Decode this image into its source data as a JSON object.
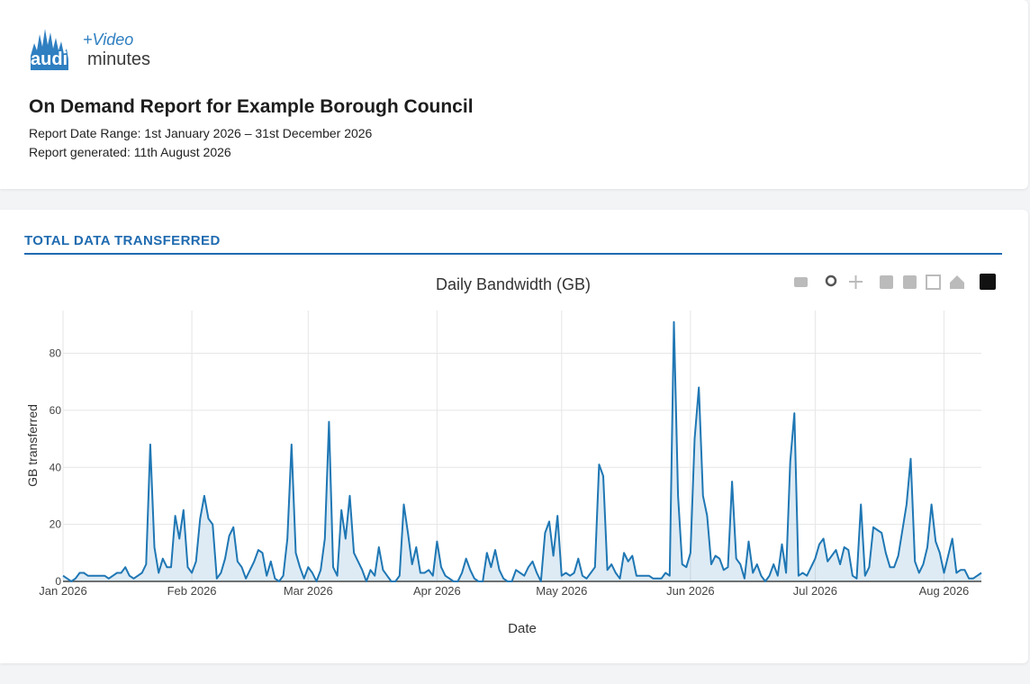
{
  "header": {
    "logo": {
      "audio": "audio",
      "minutes": "minutes",
      "video": "+Video"
    },
    "title": "On Demand Report for Example Borough Council",
    "date_range": "Report Date Range: 1st January 2026 – 31st December 2026",
    "generated": "Report generated: 11th August 2026"
  },
  "section": {
    "title": "TOTAL DATA TRANSFERRED"
  },
  "chart_data": {
    "type": "line",
    "title": "Daily Bandwidth (GB)",
    "x_label": "Date",
    "y_label": "GB transferred",
    "color": "#1f77b4",
    "fill": true,
    "grid": true,
    "xlim": [
      "2026-01-01",
      "2026-08-10"
    ],
    "ylim": [
      0,
      95
    ],
    "xticks": [
      {
        "value": "2026-01-01",
        "label": "Jan 2026"
      },
      {
        "value": "2026-02-01",
        "label": "Feb 2026"
      },
      {
        "value": "2026-03-01",
        "label": "Mar 2026"
      },
      {
        "value": "2026-04-01",
        "label": "Apr 2026"
      },
      {
        "value": "2026-05-01",
        "label": "May 2026"
      },
      {
        "value": "2026-06-01",
        "label": "Jun 2026"
      },
      {
        "value": "2026-07-01",
        "label": "Jul 2026"
      },
      {
        "value": "2026-08-01",
        "label": "Aug 2026"
      }
    ],
    "yticks": [
      0,
      20,
      40,
      60,
      80
    ],
    "x": [
      "2026-01-01",
      "2026-01-02",
      "2026-01-03",
      "2026-01-04",
      "2026-01-05",
      "2026-01-06",
      "2026-01-07",
      "2026-01-08",
      "2026-01-09",
      "2026-01-10",
      "2026-01-11",
      "2026-01-12",
      "2026-01-13",
      "2026-01-14",
      "2026-01-15",
      "2026-01-16",
      "2026-01-17",
      "2026-01-18",
      "2026-01-19",
      "2026-01-20",
      "2026-01-21",
      "2026-01-22",
      "2026-01-23",
      "2026-01-24",
      "2026-01-25",
      "2026-01-26",
      "2026-01-27",
      "2026-01-28",
      "2026-01-29",
      "2026-01-30",
      "2026-01-31",
      "2026-02-01",
      "2026-02-02",
      "2026-02-03",
      "2026-02-04",
      "2026-02-05",
      "2026-02-06",
      "2026-02-07",
      "2026-02-08",
      "2026-02-09",
      "2026-02-10",
      "2026-02-11",
      "2026-02-12",
      "2026-02-13",
      "2026-02-14",
      "2026-02-15",
      "2026-02-16",
      "2026-02-17",
      "2026-02-18",
      "2026-02-19",
      "2026-02-20",
      "2026-02-21",
      "2026-02-22",
      "2026-02-23",
      "2026-02-24",
      "2026-02-25",
      "2026-02-26",
      "2026-02-27",
      "2026-02-28",
      "2026-03-01",
      "2026-03-02",
      "2026-03-03",
      "2026-03-04",
      "2026-03-05",
      "2026-03-06",
      "2026-03-07",
      "2026-03-08",
      "2026-03-09",
      "2026-03-10",
      "2026-03-11",
      "2026-03-12",
      "2026-03-13",
      "2026-03-14",
      "2026-03-15",
      "2026-03-16",
      "2026-03-17",
      "2026-03-18",
      "2026-03-19",
      "2026-03-20",
      "2026-03-21",
      "2026-03-22",
      "2026-03-23",
      "2026-03-24",
      "2026-03-25",
      "2026-03-26",
      "2026-03-27",
      "2026-03-28",
      "2026-03-29",
      "2026-03-30",
      "2026-03-31",
      "2026-04-01",
      "2026-04-02",
      "2026-04-03",
      "2026-04-04",
      "2026-04-05",
      "2026-04-06",
      "2026-04-07",
      "2026-04-08",
      "2026-04-09",
      "2026-04-10",
      "2026-04-11",
      "2026-04-12",
      "2026-04-13",
      "2026-04-14",
      "2026-04-15",
      "2026-04-16",
      "2026-04-17",
      "2026-04-18",
      "2026-04-19",
      "2026-04-20",
      "2026-04-21",
      "2026-04-22",
      "2026-04-23",
      "2026-04-24",
      "2026-04-25",
      "2026-04-26",
      "2026-04-27",
      "2026-04-28",
      "2026-04-29",
      "2026-04-30",
      "2026-05-01",
      "2026-05-02",
      "2026-05-03",
      "2026-05-04",
      "2026-05-05",
      "2026-05-06",
      "2026-05-07",
      "2026-05-08",
      "2026-05-09",
      "2026-05-10",
      "2026-05-11",
      "2026-05-12",
      "2026-05-13",
      "2026-05-14",
      "2026-05-15",
      "2026-05-16",
      "2026-05-17",
      "2026-05-18",
      "2026-05-19",
      "2026-05-20",
      "2026-05-21",
      "2026-05-22",
      "2026-05-23",
      "2026-05-24",
      "2026-05-25",
      "2026-05-26",
      "2026-05-27",
      "2026-05-28",
      "2026-05-29",
      "2026-05-30",
      "2026-05-31",
      "2026-06-01",
      "2026-06-02",
      "2026-06-03",
      "2026-06-04",
      "2026-06-05",
      "2026-06-06",
      "2026-06-07",
      "2026-06-08",
      "2026-06-09",
      "2026-06-10",
      "2026-06-11",
      "2026-06-12",
      "2026-06-13",
      "2026-06-14",
      "2026-06-15",
      "2026-06-16",
      "2026-06-17",
      "2026-06-18",
      "2026-06-19",
      "2026-06-20",
      "2026-06-21",
      "2026-06-22",
      "2026-06-23",
      "2026-06-24",
      "2026-06-25",
      "2026-06-26",
      "2026-06-27",
      "2026-06-28",
      "2026-06-29",
      "2026-06-30",
      "2026-07-01",
      "2026-07-02",
      "2026-07-03",
      "2026-07-04",
      "2026-07-05",
      "2026-07-06",
      "2026-07-07",
      "2026-07-08",
      "2026-07-09",
      "2026-07-10",
      "2026-07-11",
      "2026-07-12",
      "2026-07-13",
      "2026-07-14",
      "2026-07-15",
      "2026-07-16",
      "2026-07-17",
      "2026-07-18",
      "2026-07-19",
      "2026-07-20",
      "2026-07-21",
      "2026-07-22",
      "2026-07-23",
      "2026-07-24",
      "2026-07-25",
      "2026-07-26",
      "2026-07-27",
      "2026-07-28",
      "2026-07-29",
      "2026-07-30",
      "2026-07-31",
      "2026-08-01",
      "2026-08-02",
      "2026-08-03",
      "2026-08-04",
      "2026-08-05",
      "2026-08-06",
      "2026-08-07",
      "2026-08-08",
      "2026-08-09",
      "2026-08-10"
    ],
    "values": [
      2,
      1,
      0,
      1,
      3,
      3,
      2,
      2,
      2,
      2,
      2,
      1,
      2,
      3,
      3,
      5,
      2,
      1,
      2,
      3,
      6,
      48,
      12,
      3,
      8,
      5,
      5,
      23,
      15,
      25,
      5,
      3,
      7,
      22,
      30,
      22,
      20,
      1,
      3,
      8,
      16,
      19,
      7,
      5,
      1,
      4,
      7,
      11,
      10,
      2,
      7,
      1,
      0,
      2,
      15,
      48,
      10,
      5,
      1,
      5,
      3,
      0,
      4,
      15,
      56,
      5,
      2,
      25,
      15,
      30,
      10,
      7,
      4,
      0,
      4,
      2,
      12,
      4,
      2,
      0,
      0,
      2,
      27,
      17,
      6,
      12,
      3,
      3,
      4,
      2,
      14,
      5,
      2,
      1,
      0,
      0,
      3,
      8,
      4,
      1,
      0,
      0,
      10,
      5,
      11,
      4,
      1,
      0,
      0,
      4,
      3,
      2,
      5,
      7,
      3,
      0,
      17,
      21,
      9,
      23,
      2,
      3,
      2,
      3,
      8,
      2,
      1,
      3,
      5,
      41,
      37,
      4,
      6,
      3,
      1,
      10,
      7,
      9,
      2,
      2,
      2,
      2,
      1,
      1,
      1,
      3,
      2,
      91,
      30,
      6,
      5,
      10,
      50,
      68,
      30,
      23,
      6,
      9,
      8,
      4,
      5,
      35,
      8,
      6,
      1,
      14,
      3,
      6,
      2,
      0,
      2,
      6,
      2,
      13,
      3,
      42,
      59,
      2,
      3,
      2,
      5,
      8,
      13,
      15,
      7,
      9,
      11,
      6,
      12,
      11,
      2,
      1,
      27,
      2,
      5,
      19,
      18,
      17,
      10,
      5,
      5,
      9,
      18,
      27,
      43,
      7,
      3,
      6,
      12,
      27,
      14,
      10,
      3,
      9,
      15,
      3,
      4,
      4,
      1,
      1,
      2,
      3
    ]
  }
}
